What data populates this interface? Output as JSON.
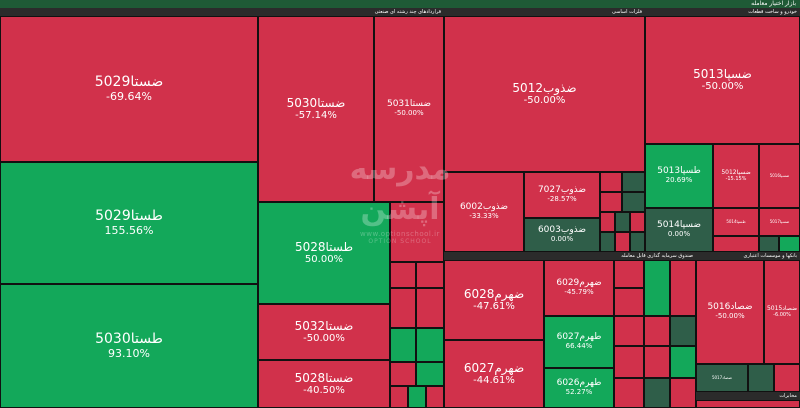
{
  "header": {
    "title": "بازار اختیار معامله"
  },
  "sectors": {
    "s1": "قراردادهای چند رشته ای صنعتی",
    "s2": "فلزات اساسی",
    "s3": "خودرو و ساخت قطعات",
    "s4": "صندوق سرمایه گذاری قابل معامله",
    "s5": "بانکها و موسسات اعتباری",
    "s6": "مخابرات"
  },
  "watermark": {
    "url": "www.optionschool.ir",
    "brand": "OPTION SCHOOL",
    "title": "مدرسه آپشن"
  },
  "tiles": [
    {
      "name": "ضستا5029",
      "pct": "-69.64%"
    },
    {
      "name": "طستا5029",
      "pct": "155.56%"
    },
    {
      "name": "طستا5030",
      "pct": "93.10%"
    },
    {
      "name": "ضستا5030",
      "pct": "-57.14%"
    },
    {
      "name": "ضستا5031",
      "pct": "-50.00%"
    },
    {
      "name": "طستا5028",
      "pct": "50.00%"
    },
    {
      "name": "ضستا5032",
      "pct": "-50.00%"
    },
    {
      "name": "ضستا5028",
      "pct": "-40.50%"
    },
    {
      "name": "ضذوب5012",
      "pct": "-50.00%"
    },
    {
      "name": "ضذوب6002",
      "pct": "-33.33%"
    },
    {
      "name": "ضذوب7027",
      "pct": "-28.57%"
    },
    {
      "name": "ضذوب6003",
      "pct": "0.00%"
    },
    {
      "name": "ضسپا5013",
      "pct": "-50.00%"
    },
    {
      "name": "طسپا5013",
      "pct": "20.69%"
    },
    {
      "name": "ضسپا5012",
      "pct": "-15.15%"
    },
    {
      "name": "ضسپا5014",
      "pct": "0.00%"
    },
    {
      "name": "ضهرم6028",
      "pct": "-47.61%"
    },
    {
      "name": "ضهرم6029",
      "pct": "-45.79%"
    },
    {
      "name": "طهرم6027",
      "pct": "66.44%"
    },
    {
      "name": "ضهرم6027",
      "pct": "-44.61%"
    },
    {
      "name": "طهرم6026",
      "pct": "52.27%"
    },
    {
      "name": "ضصاد5016",
      "pct": "-50.00%"
    },
    {
      "name": "ضصاد5015",
      "pct": "-6.00%"
    },
    {
      "name": "ضصاد5017",
      "pct": ""
    },
    {
      "name": "طسپا5014",
      "pct": ""
    },
    {
      "name": "ضسپا5016",
      "pct": ""
    },
    {
      "name": "ضسپا5017",
      "pct": ""
    }
  ]
}
